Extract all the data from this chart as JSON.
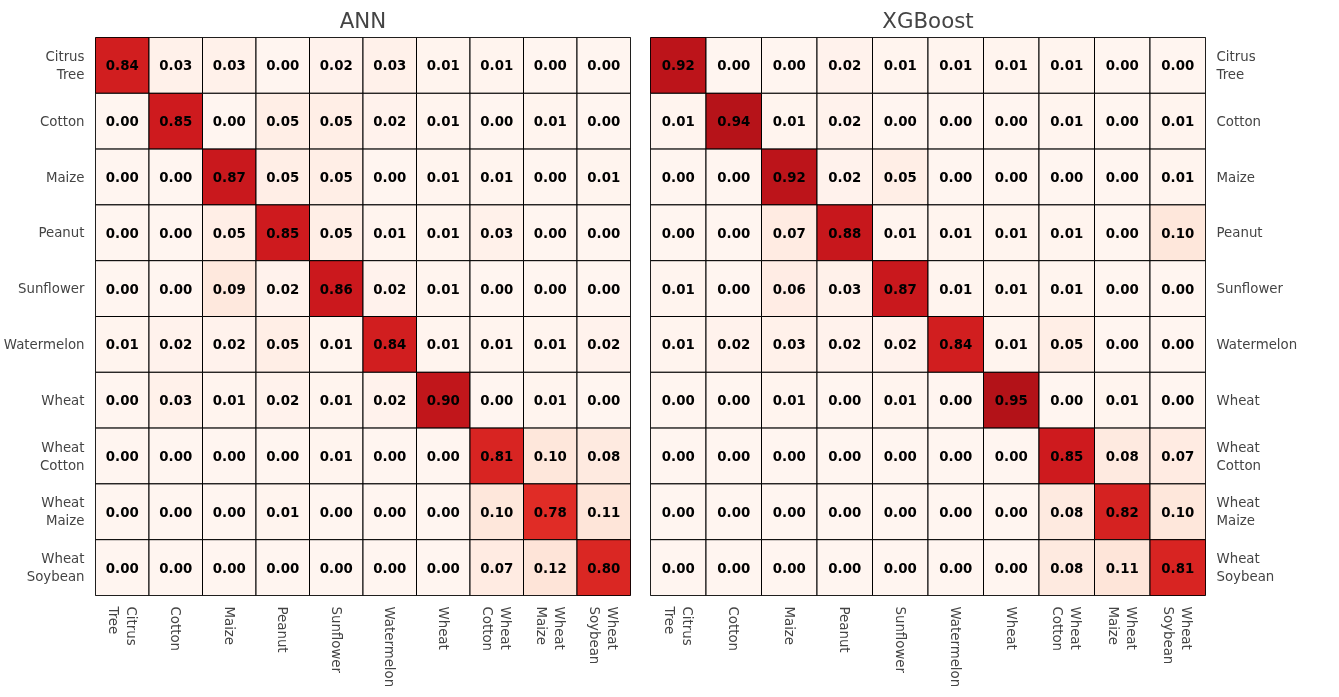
{
  "chart_data": [
    {
      "type": "heatmap",
      "title": "ANN",
      "categories": [
        "Citrus Tree",
        "Cotton",
        "Maize",
        "Peanut",
        "Sunflower",
        "Watermelon",
        "Wheat",
        "Wheat Cotton",
        "Wheat Maize",
        "Wheat Soybean"
      ],
      "y_categories": [
        "Citrus Tree",
        "Cotton",
        "Maize",
        "Peanut",
        "Sunflower",
        "Watermelon",
        "Wheat",
        "Wheat Cotton",
        "Wheat Maize",
        "Wheat Soybean"
      ],
      "cells": [
        [
          0.84,
          0.03,
          0.03,
          0.0,
          0.02,
          0.03,
          0.01,
          0.01,
          0.0,
          0.0
        ],
        [
          0.0,
          0.85,
          0.0,
          0.05,
          0.05,
          0.02,
          0.01,
          0.0,
          0.01,
          0.0
        ],
        [
          0.0,
          0.0,
          0.87,
          0.05,
          0.05,
          0.0,
          0.01,
          0.01,
          0.0,
          0.01
        ],
        [
          0.0,
          0.0,
          0.05,
          0.85,
          0.05,
          0.01,
          0.01,
          0.03,
          0.0,
          0.0
        ],
        [
          0.0,
          0.0,
          0.09,
          0.02,
          0.86,
          0.02,
          0.01,
          0.0,
          0.0,
          0.0
        ],
        [
          0.01,
          0.02,
          0.02,
          0.05,
          0.01,
          0.84,
          0.01,
          0.01,
          0.01,
          0.02
        ],
        [
          0.0,
          0.03,
          0.01,
          0.02,
          0.01,
          0.02,
          0.9,
          0.0,
          0.01,
          0.0
        ],
        [
          0.0,
          0.0,
          0.0,
          0.0,
          0.01,
          0.0,
          0.0,
          0.81,
          0.1,
          0.08
        ],
        [
          0.0,
          0.0,
          0.0,
          0.01,
          0.0,
          0.0,
          0.0,
          0.1,
          0.78,
          0.11
        ],
        [
          0.0,
          0.0,
          0.0,
          0.0,
          0.0,
          0.0,
          0.0,
          0.07,
          0.12,
          0.8
        ]
      ],
      "cell_labels": [
        [
          "0.84",
          "0.03",
          "0.03",
          "0.00",
          "0.02",
          "0.03",
          "0.01",
          "0.01",
          "0.00",
          "0.00"
        ],
        [
          "0.00",
          "0.85",
          "0.00",
          "0.05",
          "0.05",
          "0.02",
          "0.01",
          "0.00",
          "0.01",
          "0.00"
        ],
        [
          "0.00",
          "0.00",
          "0.87",
          "0.05",
          "0.05",
          "0.00",
          "0.01",
          "0.01",
          "0.00",
          "0.01"
        ],
        [
          "0.00",
          "0.00",
          "0.05",
          "0.85",
          "0.05",
          "0.01",
          "0.01",
          "0.03",
          "0.00",
          "0.00"
        ],
        [
          "0.00",
          "0.00",
          "0.09",
          "0.02",
          "0.86",
          "0.02",
          "0.01",
          "0.00",
          "0.00",
          "0.00"
        ],
        [
          "0.01",
          "0.02",
          "0.02",
          "0.05",
          "0.01",
          "0.84",
          "0.01",
          "0.01",
          "0.01",
          "0.02"
        ],
        [
          "0.00",
          "0.03",
          "0.01",
          "0.02",
          "0.01",
          "0.02",
          "0.90",
          "0.00",
          "0.01",
          "0.00"
        ],
        [
          "0.00",
          "0.00",
          "0.00",
          "0.00",
          "0.01",
          "0.00",
          "0.00",
          "0.81",
          "0.10",
          "0.08"
        ],
        [
          "0.00",
          "0.00",
          "0.00",
          "0.01",
          "0.00",
          "0.00",
          "0.00",
          "0.10",
          "0.78",
          "0.11"
        ],
        [
          "0.00",
          "0.00",
          "0.00",
          "0.00",
          "0.00",
          "0.00",
          "0.00",
          "0.07",
          "0.12",
          "0.80"
        ]
      ]
    },
    {
      "type": "heatmap",
      "title": "XGBoost",
      "categories": [
        "Citrus Tree",
        "Cotton",
        "Maize",
        "Peanut",
        "Sunflower",
        "Watermelon",
        "Wheat",
        "Wheat Cotton",
        "Wheat Maize",
        "Wheat Soybean"
      ],
      "y_categories": [
        "Citrus Tree",
        "Cotton",
        "Maize",
        "Peanut",
        "Sunflower",
        "Watermelon",
        "Wheat",
        "Wheat Cotton",
        "Wheat Maize",
        "Wheat Soybean"
      ],
      "cells": [
        [
          0.92,
          0.0,
          0.0,
          0.02,
          0.01,
          0.01,
          0.01,
          0.01,
          0.0,
          0.0
        ],
        [
          0.01,
          0.94,
          0.01,
          0.02,
          0.0,
          0.0,
          0.0,
          0.01,
          0.0,
          0.01
        ],
        [
          0.0,
          0.0,
          0.92,
          0.02,
          0.05,
          0.0,
          0.0,
          0.0,
          0.0,
          0.01
        ],
        [
          0.0,
          0.0,
          0.07,
          0.88,
          0.01,
          0.01,
          0.01,
          0.01,
          0.0,
          0.1
        ],
        [
          0.01,
          0.0,
          0.06,
          0.03,
          0.87,
          0.01,
          0.01,
          0.01,
          0.0,
          0.0
        ],
        [
          0.01,
          0.02,
          0.03,
          0.02,
          0.02,
          0.84,
          0.01,
          0.05,
          0.0,
          0.0
        ],
        [
          0.0,
          0.0,
          0.01,
          0.0,
          0.01,
          0.0,
          0.95,
          0.0,
          0.01,
          0.0
        ],
        [
          0.0,
          0.0,
          0.0,
          0.0,
          0.0,
          0.0,
          0.0,
          0.85,
          0.08,
          0.07
        ],
        [
          0.0,
          0.0,
          0.0,
          0.0,
          0.0,
          0.0,
          0.0,
          0.08,
          0.82,
          0.1
        ],
        [
          0.0,
          0.0,
          0.0,
          0.0,
          0.0,
          0.0,
          0.0,
          0.08,
          0.11,
          0.81
        ]
      ],
      "cell_labels": [
        [
          "0.92",
          "0.00",
          "0.00",
          "0.02",
          "0.01",
          "0.01",
          "0.01",
          "0.01",
          "0.00",
          "0.00"
        ],
        [
          "0.01",
          "0.94",
          "0.01",
          "0.02",
          "0.00",
          "0.00",
          "0.00",
          "0.01",
          "0.00",
          "0.01"
        ],
        [
          "0.00",
          "0.00",
          "0.92",
          "0.02",
          "0.05",
          "0.00",
          "0.00",
          "0.00",
          "0.00",
          "0.01"
        ],
        [
          "0.00",
          "0.00",
          "0.07",
          "0.88",
          "0.01",
          "0.01",
          "0.01",
          "0.01",
          "0.00",
          "0.10"
        ],
        [
          "0.01",
          "0.00",
          "0.06",
          "0.03",
          "0.87",
          "0.01",
          "0.01",
          "0.01",
          "0.00",
          "0.00"
        ],
        [
          "0.01",
          "0.02",
          "0.03",
          "0.02",
          "0.02",
          "0.84",
          "0.01",
          "0.05",
          "0.00",
          "0.00"
        ],
        [
          "0.00",
          "0.00",
          "0.01",
          "0.00",
          "0.01",
          "0.00",
          "0.95",
          "0.00",
          "0.01",
          "0.00"
        ],
        [
          "0.00",
          "0.00",
          "0.00",
          "0.00",
          "0.00",
          "0.00",
          "0.00",
          "0.85",
          "0.08",
          "0.07"
        ],
        [
          "0.00",
          "0.00",
          "0.00",
          "0.00",
          "0.00",
          "0.00",
          "0.00",
          "0.08",
          "0.82",
          "0.10"
        ],
        [
          "0.00",
          "0.00",
          "0.00",
          "0.00",
          "0.00",
          "0.00",
          "0.00",
          "0.08",
          "0.11",
          "0.81"
        ]
      ]
    }
  ]
}
